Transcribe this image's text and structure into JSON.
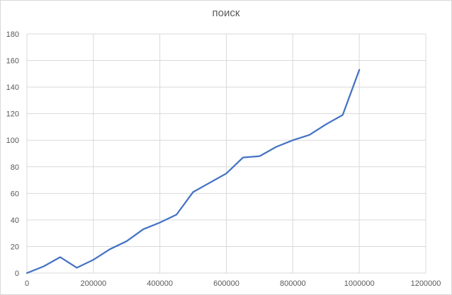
{
  "chart_data": {
    "type": "line",
    "title": "поиск",
    "xlabel": "",
    "ylabel": "",
    "xlim": [
      0,
      1200000
    ],
    "ylim": [
      0,
      180
    ],
    "x_ticks": [
      "0",
      "200000",
      "400000",
      "600000",
      "800000",
      "1000000",
      "1200000"
    ],
    "y_ticks": [
      "0",
      "20",
      "40",
      "60",
      "80",
      "100",
      "120",
      "140",
      "160",
      "180"
    ],
    "grid": true,
    "legend": "none",
    "series": [
      {
        "color": "#4472c4",
        "x": [
          0,
          50000,
          100000,
          150000,
          200000,
          250000,
          300000,
          350000,
          400000,
          450000,
          500000,
          550000,
          600000,
          650000,
          700000,
          750000,
          800000,
          850000,
          900000,
          950000,
          1000000
        ],
        "y": [
          0,
          5,
          12,
          4,
          10,
          18,
          24,
          33,
          38,
          44,
          61,
          68,
          75,
          87,
          88,
          95,
          100,
          104,
          112,
          119,
          153
        ]
      }
    ]
  }
}
